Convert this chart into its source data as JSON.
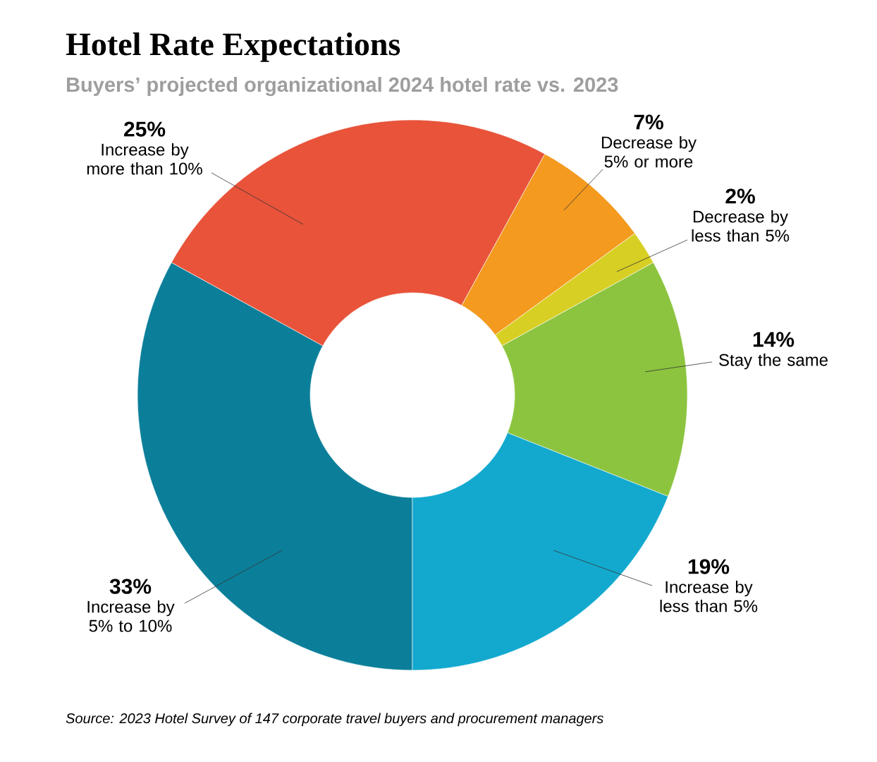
{
  "chart_data": {
    "type": "donut",
    "title": "Hotel Rate Expectations",
    "subtitle": "Buyers’ projected organizational 2024 hotel rate vs. 2023",
    "categories": [
      "Increase by more than 10%",
      "Decrease by 5% or more",
      "Decrease by less than 5%",
      "Stay the same",
      "Increase by less than 5%",
      "Increase by 5% to 10%"
    ],
    "values": [
      25,
      7,
      2,
      14,
      19,
      33
    ],
    "value_labels": [
      "25%",
      "7%",
      "2%",
      "14%",
      "19%",
      "33%"
    ],
    "colors": [
      "#e8533a",
      "#f39a1f",
      "#d8cf24",
      "#8cc43f",
      "#13a9cf",
      "#0b7f9a"
    ],
    "annotations": [
      "Source: 2023 Hotel Survey of 147 corporate travel buyers and procurement managers"
    ]
  }
}
